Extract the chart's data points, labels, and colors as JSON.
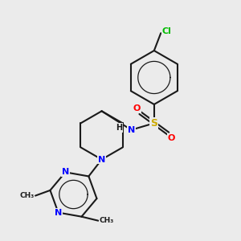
{
  "bg_color": "#ebebeb",
  "bond_color": "#1a1a1a",
  "bond_width": 1.5,
  "atom_colors": {
    "C": "#1a1a1a",
    "N": "#0000ff",
    "S": "#ccaa00",
    "O": "#ff0000",
    "Cl": "#00bb00",
    "H": "#1a1a1a"
  },
  "font_size": 7.5
}
